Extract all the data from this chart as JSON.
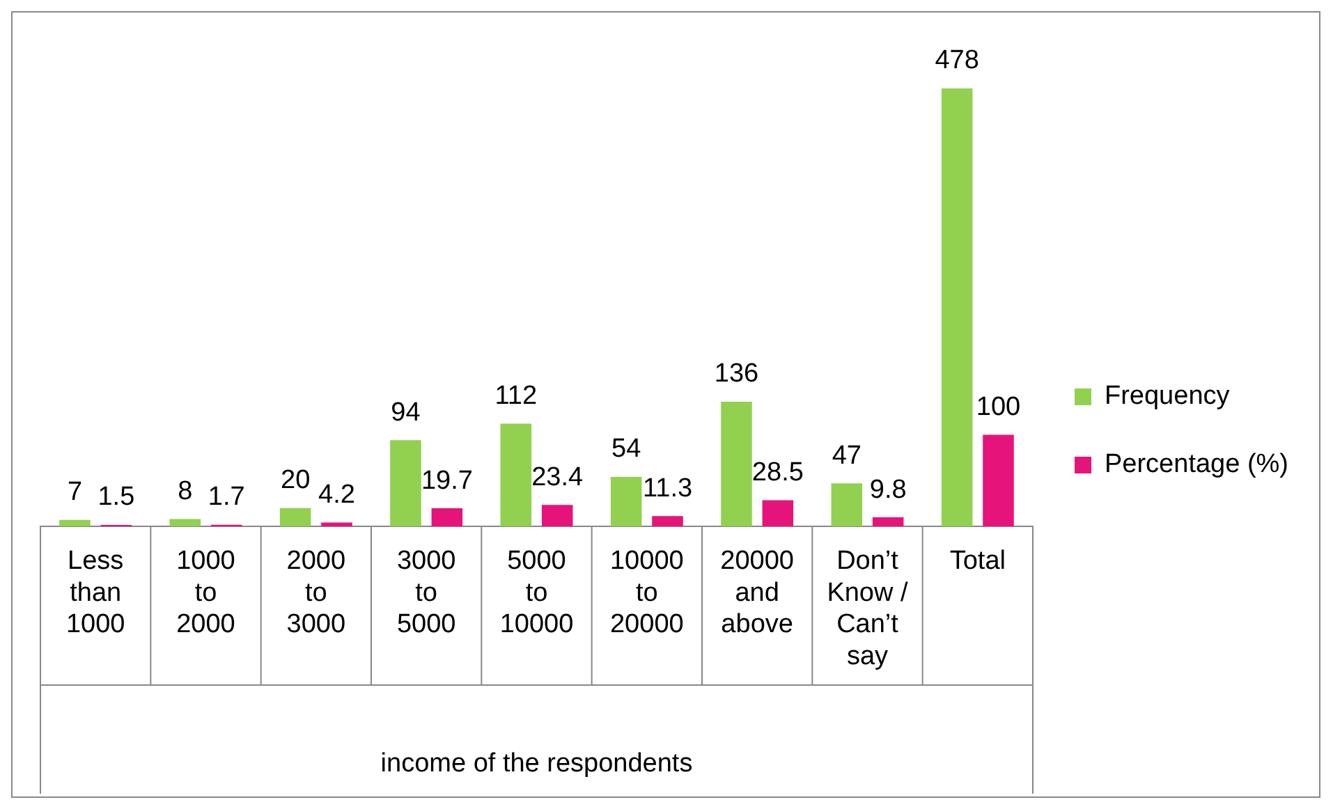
{
  "chart_data": {
    "type": "bar",
    "xlabel": "income of the respondents",
    "categories": [
      "Less than 1000",
      "1000 to 2000",
      "2000 to 3000",
      "3000 to 5000",
      "5000 to 10000",
      "10000 to 20000",
      "20000 and above",
      "Don’t Know / Can’t say",
      "Total"
    ],
    "series": [
      {
        "name": "Frequency",
        "color": "#92d050",
        "values": [
          7,
          8,
          20,
          94,
          112,
          54,
          136,
          47,
          478
        ]
      },
      {
        "name": "Percentage (%)",
        "color": "#e6137a",
        "values": [
          1.5,
          1.7,
          4.2,
          19.7,
          23.4,
          11.3,
          28.5,
          9.8,
          100
        ]
      }
    ],
    "data_labels": true,
    "legend": "right",
    "grid": false
  }
}
